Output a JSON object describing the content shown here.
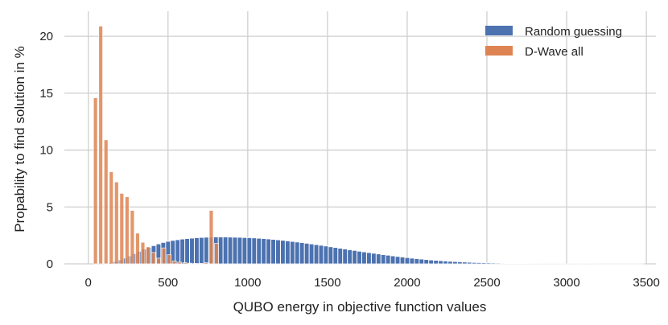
{
  "chart_data": {
    "type": "bar",
    "title": "",
    "xlabel": "QUBO energy in objective function values",
    "ylabel": "Propability to find solution in %",
    "xlim": [
      -150,
      3560
    ],
    "ylim": [
      0,
      22.2
    ],
    "x_ticks": [
      0,
      500,
      1000,
      1500,
      2000,
      2500,
      3000,
      3500
    ],
    "y_ticks": [
      0,
      5,
      10,
      15,
      20
    ],
    "grid": true,
    "legend_position": "top-right",
    "colors": {
      "Random guessing": "#4c72b0",
      "D-Wave all": "#dd8452"
    },
    "series": [
      {
        "name": "Random guessing",
        "bin_width": 28.8,
        "x": [
          110,
          140,
          170,
          200,
          230,
          260,
          290,
          320,
          350,
          380,
          410,
          440,
          470,
          500,
          530,
          560,
          590,
          620,
          650,
          680,
          710,
          740,
          770,
          800,
          830,
          860,
          890,
          920,
          950,
          980,
          1010,
          1040,
          1070,
          1100,
          1130,
          1160,
          1190,
          1220,
          1250,
          1280,
          1310,
          1340,
          1370,
          1400,
          1430,
          1460,
          1490,
          1520,
          1550,
          1580,
          1610,
          1640,
          1670,
          1700,
          1730,
          1760,
          1790,
          1820,
          1850,
          1880,
          1910,
          1940,
          1970,
          2000,
          2030,
          2060,
          2090,
          2120,
          2150,
          2180,
          2210,
          2240,
          2270,
          2300,
          2330,
          2360,
          2390,
          2420,
          2450,
          2480,
          2510,
          2540,
          2570,
          2600,
          2630,
          2660,
          2690,
          2720,
          2750,
          2780,
          2810,
          2840,
          2870,
          2900,
          2930,
          2960,
          2990,
          3020,
          3050,
          3080,
          3110,
          3140,
          3170,
          3200,
          3230,
          3260,
          3290,
          3320,
          3350,
          3380,
          3410,
          3440,
          3470
        ],
        "values": [
          0.05,
          0.1,
          0.2,
          0.35,
          0.5,
          0.7,
          0.9,
          1.1,
          1.3,
          1.45,
          1.6,
          1.75,
          1.88,
          1.98,
          2.06,
          2.12,
          2.18,
          2.22,
          2.26,
          2.3,
          2.32,
          2.34,
          2.35,
          2.36,
          2.36,
          2.36,
          2.35,
          2.34,
          2.33,
          2.31,
          2.3,
          2.28,
          2.25,
          2.22,
          2.19,
          2.15,
          2.11,
          2.07,
          2.02,
          1.97,
          1.92,
          1.87,
          1.81,
          1.75,
          1.69,
          1.63,
          1.57,
          1.5,
          1.44,
          1.37,
          1.31,
          1.24,
          1.18,
          1.11,
          1.05,
          0.99,
          0.93,
          0.87,
          0.81,
          0.76,
          0.7,
          0.65,
          0.6,
          0.55,
          0.5,
          0.46,
          0.42,
          0.38,
          0.34,
          0.31,
          0.28,
          0.25,
          0.22,
          0.2,
          0.18,
          0.16,
          0.14,
          0.12,
          0.11,
          0.1,
          0.09,
          0.08,
          0.07,
          0.06,
          0.05,
          0.045,
          0.04,
          0.035,
          0.03,
          0.025,
          0.02,
          0.018,
          0.016,
          0.014,
          0.012,
          0.01,
          0.009,
          0.008,
          0.007,
          0.006,
          0.005,
          0.005,
          0.004,
          0.004,
          0.003,
          0.003,
          0.003,
          0.002,
          0.002,
          0.002,
          0.002,
          0.001,
          0.001
        ]
      },
      {
        "name": "D-Wave all",
        "bin_width": 25,
        "x": [
          45,
          78,
          111,
          144,
          177,
          210,
          243,
          276,
          309,
          342,
          375,
          408,
          441,
          474,
          507,
          540,
          573,
          606,
          639,
          672,
          705,
          738,
          771,
          804
        ],
        "values": [
          14.6,
          20.9,
          10.9,
          8.1,
          7.2,
          6.2,
          5.9,
          4.7,
          2.7,
          1.9,
          1.5,
          1.0,
          0.5,
          1.4,
          0.8,
          0.25,
          0.15,
          0.1,
          0.06,
          0.04,
          0.04,
          0.1,
          4.7,
          1.8
        ]
      }
    ]
  }
}
